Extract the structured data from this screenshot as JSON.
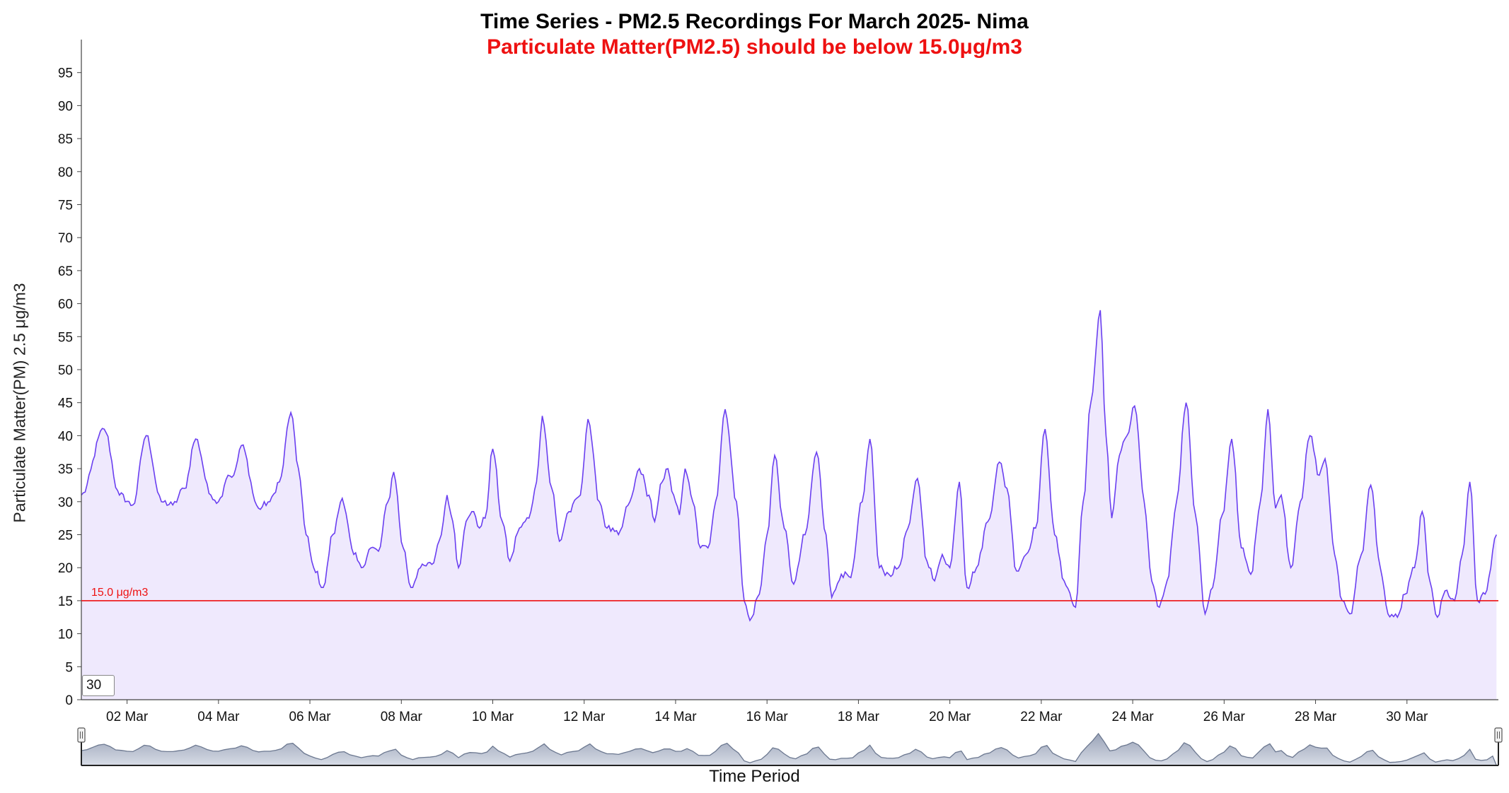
{
  "chart_data": {
    "type": "area",
    "title": "Time Series - PM2.5 Recordings For March 2025- Nima",
    "subtitle": "Particulate Matter(PM2.5) should be below 15.0μg/m3",
    "xlabel": "Time Period",
    "ylabel": "Particulate Matter(PM) 2.5 μg/m3",
    "ylim": [
      0,
      100
    ],
    "xlim": [
      "2025-03-01",
      "2025-03-31"
    ],
    "y_ticks": [
      0,
      5,
      10,
      15,
      20,
      25,
      30,
      35,
      40,
      45,
      50,
      55,
      60,
      65,
      70,
      75,
      80,
      85,
      90,
      95
    ],
    "x_ticks": [
      "02 Mar",
      "04 Mar",
      "06 Mar",
      "08 Mar",
      "10 Mar",
      "12 Mar",
      "14 Mar",
      "16 Mar",
      "18 Mar",
      "20 Mar",
      "22 Mar",
      "24 Mar",
      "26 Mar",
      "28 Mar",
      "30 Mar"
    ],
    "grid": false,
    "threshold": {
      "value": 15.0,
      "label": "15.0 μg/m3",
      "color": "#ee1111"
    },
    "series": [
      {
        "color": "#6a3ff0",
        "fill": "#efe9fd",
        "points": [
          [
            "2025-03-01",
            31
          ],
          [
            "2025-03-01 12:00",
            41
          ],
          [
            "2025-03-01 20:00",
            31
          ],
          [
            "2025-03-02 03:00",
            29.5
          ],
          [
            "2025-03-02 10:00",
            40
          ],
          [
            "2025-03-02 18:00",
            30
          ],
          [
            "2025-03-03 00:00",
            29.5
          ],
          [
            "2025-03-03 06:00",
            32
          ],
          [
            "2025-03-03 12:00",
            39.5
          ],
          [
            "2025-03-03 20:00",
            31
          ],
          [
            "2025-03-04 00:00",
            30
          ],
          [
            "2025-03-04 05:00",
            34
          ],
          [
            "2025-03-04 08:00",
            34
          ],
          [
            "2025-03-04 12:00",
            38.5
          ],
          [
            "2025-03-04 21:00",
            29
          ],
          [
            "2025-03-05 03:00",
            30
          ],
          [
            "2025-03-05 08:00",
            33
          ],
          [
            "2025-03-05 14:00",
            43.5
          ],
          [
            "2025-03-05 18:00",
            35
          ],
          [
            "2025-03-05 22:00",
            25
          ],
          [
            "2025-03-06 02:00",
            20
          ],
          [
            "2025-03-06 07:00",
            17
          ],
          [
            "2025-03-06 12:00",
            25
          ],
          [
            "2025-03-06 17:00",
            30.5
          ],
          [
            "2025-03-06 23:00",
            22
          ],
          [
            "2025-03-07 03:00",
            20
          ],
          [
            "2025-03-07 08:00",
            23
          ],
          [
            "2025-03-07 12:00",
            22.5
          ],
          [
            "2025-03-07 17:00",
            30
          ],
          [
            "2025-03-07 20:00",
            34.5
          ],
          [
            "2025-03-08 01:00",
            23
          ],
          [
            "2025-03-08 05:00",
            17
          ],
          [
            "2025-03-08 10:00",
            20
          ],
          [
            "2025-03-08 16:00",
            20.5
          ],
          [
            "2025-03-08 21:00",
            25
          ],
          [
            "2025-03-09 00:00",
            31
          ],
          [
            "2025-03-09 03:00",
            27
          ],
          [
            "2025-03-09 06:00",
            20
          ],
          [
            "2025-03-09 10:00",
            27
          ],
          [
            "2025-03-09 14:00",
            28.5
          ],
          [
            "2025-03-09 17:00",
            26
          ],
          [
            "2025-03-09 20:00",
            27.5
          ],
          [
            "2025-03-10 00:00",
            38
          ],
          [
            "2025-03-10 05:00",
            27
          ],
          [
            "2025-03-10 09:00",
            21
          ],
          [
            "2025-03-10 14:00",
            26
          ],
          [
            "2025-03-10 19:00",
            27.5
          ],
          [
            "2025-03-10 23:00",
            33
          ],
          [
            "2025-03-11 02:00",
            43
          ],
          [
            "2025-03-11 07:00",
            32
          ],
          [
            "2025-03-11 11:00",
            24
          ],
          [
            "2025-03-11 16:00",
            28.5
          ],
          [
            "2025-03-11 22:00",
            31
          ],
          [
            "2025-03-12 02:00",
            42.5
          ],
          [
            "2025-03-12 08:00",
            30
          ],
          [
            "2025-03-12 12:00",
            26
          ],
          [
            "2025-03-12 18:00",
            25
          ],
          [
            "2025-03-13 00:00",
            30
          ],
          [
            "2025-03-13 05:00",
            35
          ],
          [
            "2025-03-13 10:00",
            31
          ],
          [
            "2025-03-13 13:00",
            27
          ],
          [
            "2025-03-13 17:00",
            33
          ],
          [
            "2025-03-13 20:00",
            35
          ],
          [
            "2025-03-13 23:00",
            31
          ],
          [
            "2025-03-14 02:00",
            28
          ],
          [
            "2025-03-14 05:00",
            35
          ],
          [
            "2025-03-14 09:00",
            30
          ],
          [
            "2025-03-14 13:00",
            23
          ],
          [
            "2025-03-14 17:00",
            23
          ],
          [
            "2025-03-14 21:00",
            30
          ],
          [
            "2025-03-15 02:00",
            44
          ],
          [
            "2025-03-15 08:00",
            30
          ],
          [
            "2025-03-15 12:00",
            15
          ],
          [
            "2025-03-15 15:00",
            12
          ],
          [
            "2025-03-15 20:00",
            16
          ],
          [
            "2025-03-16 00:00",
            25
          ],
          [
            "2025-03-16 04:00",
            37
          ],
          [
            "2025-03-16 09:00",
            26
          ],
          [
            "2025-03-16 14:00",
            17.5
          ],
          [
            "2025-03-16 20:00",
            25
          ],
          [
            "2025-03-17 02:00",
            37.5
          ],
          [
            "2025-03-17 07:00",
            25
          ],
          [
            "2025-03-17 10:00",
            15.5
          ],
          [
            "2025-03-17 15:00",
            19
          ],
          [
            "2025-03-17 20:00",
            18.5
          ],
          [
            "2025-03-18 02:00",
            30
          ],
          [
            "2025-03-18 06:00",
            39.5
          ],
          [
            "2025-03-18 11:00",
            20
          ],
          [
            "2025-03-18 16:00",
            19
          ],
          [
            "2025-03-18 21:00",
            20
          ],
          [
            "2025-03-19 02:00",
            26
          ],
          [
            "2025-03-19 07:00",
            33.5
          ],
          [
            "2025-03-19 12:00",
            21
          ],
          [
            "2025-03-19 16:00",
            18
          ],
          [
            "2025-03-19 20:00",
            22
          ],
          [
            "2025-03-20 00:00",
            20
          ],
          [
            "2025-03-20 05:00",
            33
          ],
          [
            "2025-03-20 09:00",
            17
          ],
          [
            "2025-03-20 14:00",
            20
          ],
          [
            "2025-03-20 20:00",
            27
          ],
          [
            "2025-03-21 02:00",
            36
          ],
          [
            "2025-03-21 06:00",
            32
          ],
          [
            "2025-03-21 11:00",
            19.5
          ],
          [
            "2025-03-21 16:00",
            22
          ],
          [
            "2025-03-21 21:00",
            26
          ],
          [
            "2025-03-22 02:00",
            41
          ],
          [
            "2025-03-22 07:00",
            25
          ],
          [
            "2025-03-22 12:00",
            18
          ],
          [
            "2025-03-22 18:00",
            14
          ],
          [
            "2025-03-22 22:00",
            30
          ],
          [
            "2025-03-23 02:00",
            45
          ],
          [
            "2025-03-23 07:00",
            59
          ],
          [
            "2025-03-23 10:00",
            40
          ],
          [
            "2025-03-23 13:00",
            27.5
          ],
          [
            "2025-03-23 17:00",
            37
          ],
          [
            "2025-03-23 21:00",
            40
          ],
          [
            "2025-03-24 01:00",
            44.5
          ],
          [
            "2025-03-24 06:00",
            30
          ],
          [
            "2025-03-24 10:00",
            18
          ],
          [
            "2025-03-24 14:00",
            14
          ],
          [
            "2025-03-24 18:00",
            18
          ],
          [
            "2025-03-24 23:00",
            30
          ],
          [
            "2025-03-25 04:00",
            45
          ],
          [
            "2025-03-25 09:00",
            28
          ],
          [
            "2025-03-25 14:00",
            13
          ],
          [
            "2025-03-25 18:00",
            17
          ],
          [
            "2025-03-25 23:00",
            28
          ],
          [
            "2025-03-26 04:00",
            39.5
          ],
          [
            "2025-03-26 09:00",
            23
          ],
          [
            "2025-03-26 14:00",
            19
          ],
          [
            "2025-03-26 19:00",
            30
          ],
          [
            "2025-03-26 23:00",
            44
          ],
          [
            "2025-03-27 03:00",
            29
          ],
          [
            "2025-03-27 06:00",
            31
          ],
          [
            "2025-03-27 11:00",
            20
          ],
          [
            "2025-03-27 16:00",
            30
          ],
          [
            "2025-03-27 21:00",
            40
          ],
          [
            "2025-03-28 02:00",
            34
          ],
          [
            "2025-03-28 05:00",
            36.5
          ],
          [
            "2025-03-28 10:00",
            22
          ],
          [
            "2025-03-28 14:00",
            15
          ],
          [
            "2025-03-28 18:00",
            13
          ],
          [
            "2025-03-29 00:00",
            22
          ],
          [
            "2025-03-29 05:00",
            32.5
          ],
          [
            "2025-03-29 10:00",
            20
          ],
          [
            "2025-03-29 14:00",
            13
          ],
          [
            "2025-03-29 19:00",
            12.5
          ],
          [
            "2025-03-29 23:00",
            16
          ],
          [
            "2025-03-30 04:00",
            20
          ],
          [
            "2025-03-30 08:00",
            28.5
          ],
          [
            "2025-03-30 12:00",
            18
          ],
          [
            "2025-03-30 16:00",
            12.5
          ],
          [
            "2025-03-30 20:00",
            16.5
          ],
          [
            "2025-03-31 01:00",
            15
          ],
          [
            "2025-03-31 05:00",
            22
          ],
          [
            "2025-03-31 09:00",
            33
          ],
          [
            "2025-03-31 13:00",
            15
          ],
          [
            "2025-03-31 17:00",
            16
          ],
          [
            "2025-03-31 23:00",
            25
          ]
        ]
      }
    ],
    "range_selector": {
      "value": "30"
    }
  }
}
